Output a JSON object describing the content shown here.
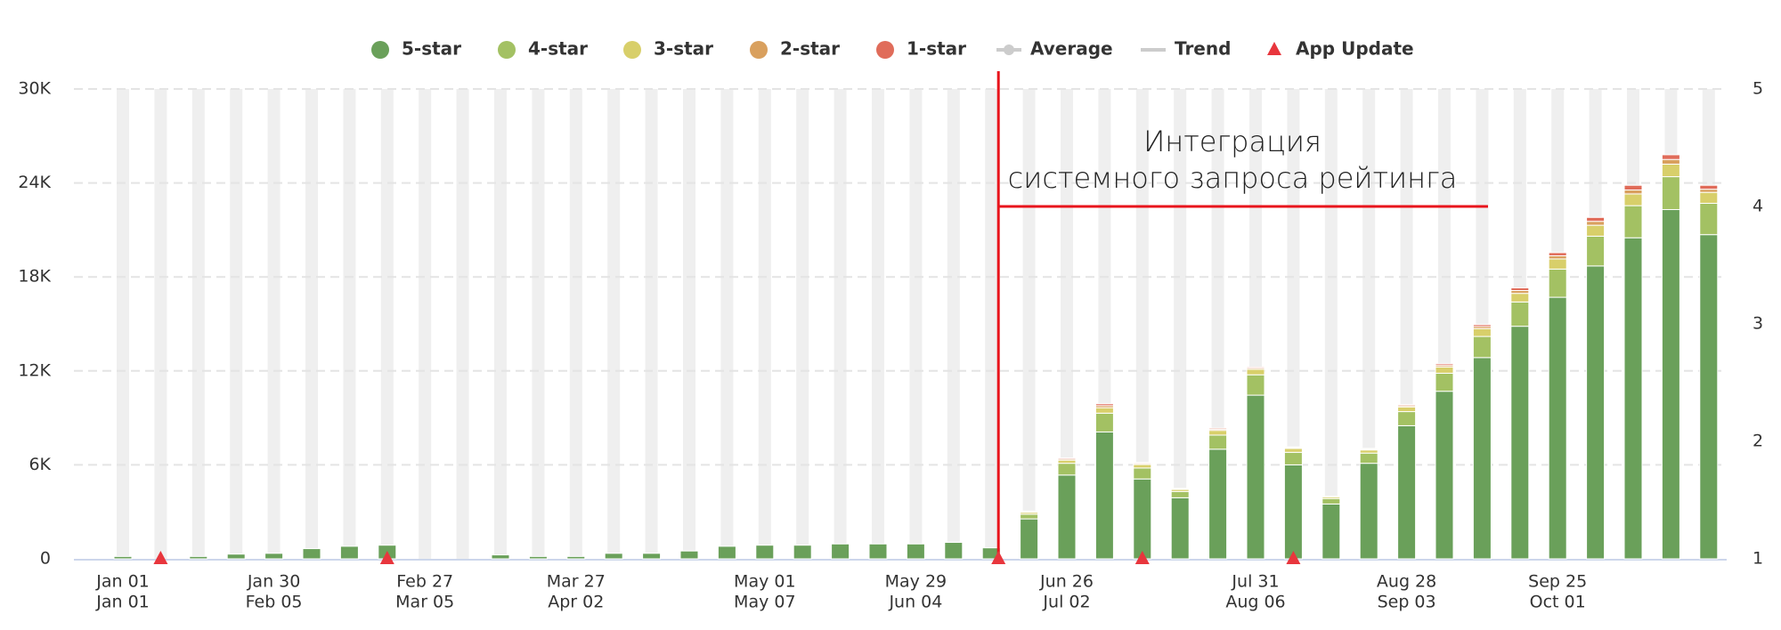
{
  "chart_data": {
    "type": "stacked_bar",
    "categories": [
      "Jan 01",
      null,
      null,
      null,
      "Jan 30",
      null,
      null,
      null,
      "Feb 27",
      null,
      null,
      null,
      "Mar 27",
      null,
      null,
      null,
      null,
      "May 01",
      null,
      null,
      null,
      "May 29",
      null,
      null,
      null,
      "Jun 26",
      null,
      null,
      null,
      null,
      "Jul 31",
      null,
      null,
      null,
      "Aug 28",
      null,
      null,
      null,
      "Sep 25",
      null,
      null,
      null,
      null
    ],
    "categories_secondary": [
      "Jan 01",
      null,
      null,
      null,
      "Feb 05",
      null,
      null,
      null,
      "Mar 05",
      null,
      null,
      null,
      "Apr 02",
      null,
      null,
      null,
      null,
      "May 07",
      null,
      null,
      null,
      "Jun 04",
      null,
      null,
      null,
      "Jul 02",
      null,
      null,
      null,
      null,
      "Aug 06",
      null,
      null,
      null,
      "Sep 03",
      null,
      null,
      null,
      "Oct 01",
      null,
      null,
      null,
      null
    ],
    "series": [
      {
        "name": "5-star",
        "color": "#6aa05a",
        "values": [
          150,
          0,
          150,
          300,
          350,
          650,
          800,
          870,
          0,
          0,
          250,
          150,
          150,
          350,
          350,
          500,
          800,
          870,
          870,
          950,
          950,
          950,
          1050,
          700,
          2550,
          5350,
          8100,
          5100,
          3900,
          7000,
          10450,
          6000,
          3500,
          6100,
          8500,
          10700,
          12850,
          14850,
          16700,
          18700,
          20500,
          22300,
          20700
        ]
      },
      {
        "name": "4-star",
        "color": "#a3c163",
        "values": [
          0,
          0,
          0,
          0,
          0,
          0,
          0,
          0,
          0,
          0,
          0,
          0,
          0,
          0,
          0,
          0,
          0,
          0,
          0,
          0,
          0,
          0,
          0,
          0,
          300,
          750,
          1200,
          700,
          400,
          900,
          1300,
          800,
          350,
          650,
          900,
          1150,
          1350,
          1550,
          1800,
          1900,
          2050,
          2100,
          2000
        ]
      },
      {
        "name": "3-star",
        "color": "#d8cf6a",
        "values": [
          0,
          0,
          0,
          0,
          0,
          0,
          0,
          0,
          0,
          0,
          0,
          0,
          0,
          0,
          0,
          0,
          0,
          0,
          0,
          0,
          0,
          0,
          0,
          0,
          120,
          200,
          350,
          220,
          130,
          300,
          350,
          250,
          100,
          200,
          300,
          400,
          500,
          550,
          650,
          700,
          750,
          800,
          700
        ]
      },
      {
        "name": "2-star",
        "color": "#d9a05e",
        "values": [
          0,
          0,
          0,
          0,
          0,
          0,
          0,
          0,
          0,
          0,
          0,
          0,
          0,
          0,
          0,
          0,
          0,
          0,
          0,
          0,
          0,
          0,
          0,
          0,
          40,
          80,
          130,
          70,
          40,
          80,
          80,
          50,
          30,
          50,
          80,
          100,
          130,
          180,
          200,
          250,
          250,
          300,
          200
        ]
      },
      {
        "name": "1-star",
        "color": "#e06c5a",
        "values": [
          0,
          0,
          0,
          0,
          0,
          0,
          0,
          0,
          0,
          0,
          0,
          0,
          0,
          0,
          0,
          0,
          0,
          0,
          0,
          0,
          0,
          0,
          0,
          0,
          40,
          70,
          120,
          60,
          30,
          70,
          70,
          50,
          20,
          50,
          70,
          100,
          120,
          170,
          200,
          250,
          300,
          300,
          250
        ]
      }
    ],
    "inactive_legend": [
      "Average",
      "Trend"
    ],
    "app_update": {
      "name": "App Update",
      "color": "#e8363d",
      "values": [
        null,
        0,
        null,
        null,
        null,
        null,
        null,
        0,
        null,
        null,
        null,
        null,
        null,
        null,
        null,
        null,
        null,
        null,
        null,
        null,
        null,
        null,
        null,
        0,
        null,
        null,
        null,
        0,
        null,
        null,
        null,
        0,
        null,
        null,
        null,
        null,
        null,
        null,
        null,
        null,
        null,
        null,
        null
      ]
    },
    "ylim": [
      0,
      30000
    ],
    "yticks": [
      0,
      {
        "value": 6000,
        "label": "6K"
      },
      {
        "value": 12000,
        "label": "12K"
      },
      {
        "value": 18000,
        "label": "18K"
      },
      {
        "value": 24000,
        "label": "24K"
      },
      {
        "value": 30000,
        "label": "30K"
      }
    ],
    "y2lim": [
      1,
      5
    ],
    "y2ticks": [
      1,
      2,
      3,
      4,
      5
    ],
    "grid": true,
    "annotation": {
      "lines": [
        "Интеграция",
        "системного запроса рейтинга"
      ],
      "color": "#e8141c"
    }
  }
}
